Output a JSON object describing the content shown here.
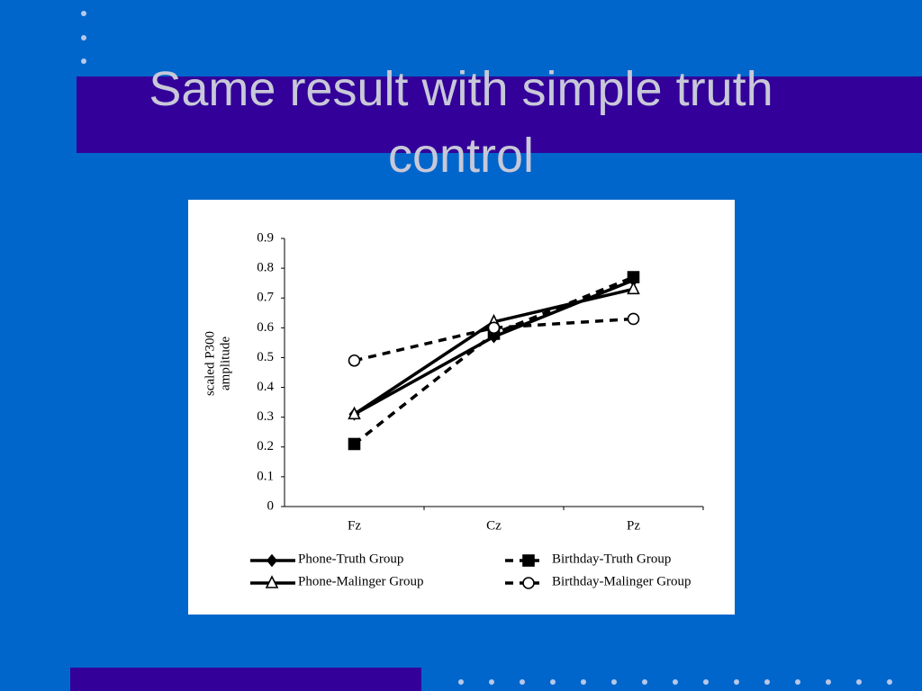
{
  "slide_title": "Same result with simple truth control",
  "chart_data": {
    "type": "line",
    "ylabel": [
      "scaled P300",
      "amplitude"
    ],
    "categories": [
      "Fz",
      "Cz",
      "Pz"
    ],
    "ylim": [
      0,
      0.9
    ],
    "yticks": [
      0,
      0.1,
      0.2,
      0.3,
      0.4,
      0.5,
      0.6,
      0.7,
      0.8,
      0.9
    ],
    "series": [
      {
        "name": "Phone-Truth Group",
        "color": "#000000",
        "line_style": "solid",
        "marker": "diamond",
        "marker_fill": "filled",
        "values": [
          0.31,
          0.57,
          0.76
        ]
      },
      {
        "name": "Phone-Malinger Group",
        "color": "#000000",
        "line_style": "solid",
        "marker": "triangle",
        "marker_fill": "open",
        "values": [
          0.31,
          0.62,
          0.73
        ]
      },
      {
        "name": "Birthday-Truth Group",
        "color": "#000000",
        "line_style": "dashed",
        "marker": "square",
        "marker_fill": "filled",
        "values": [
          0.21,
          0.58,
          0.77
        ]
      },
      {
        "name": "Birthday-Malinger Group",
        "color": "#000000",
        "line_style": "dashed",
        "marker": "circle",
        "marker_fill": "open",
        "values": [
          0.49,
          0.6,
          0.63
        ]
      }
    ]
  }
}
